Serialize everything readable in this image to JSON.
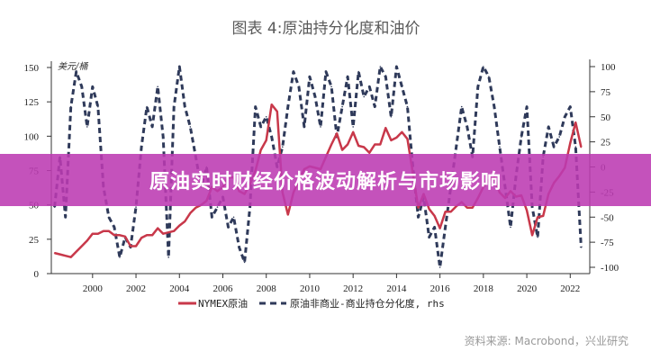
{
  "chart_data": {
    "type": "line",
    "title": "图表 4:原油持分化度和油价",
    "left_unit_label": "美元/桶",
    "source": "资料来源: Macrobond，兴业研究",
    "y_left": {
      "range": [
        0,
        150
      ],
      "ticks": [
        0,
        25,
        50,
        75,
        100,
        125,
        150
      ]
    },
    "y_right": {
      "range": [
        -100,
        100
      ],
      "ticks": [
        -100,
        -75,
        -50,
        -25,
        0,
        25,
        50,
        75,
        100
      ]
    },
    "x_axis": {
      "range": [
        1998.1,
        2022.9
      ],
      "ticks": [
        2000,
        2002,
        2004,
        2006,
        2008,
        2010,
        2012,
        2014,
        2016,
        2018,
        2020,
        2022
      ]
    },
    "grid": false,
    "legend_position": "bottom",
    "x": [
      1998.25,
      1998.5,
      1998.75,
      1999,
      1999.25,
      1999.5,
      1999.75,
      2000,
      2000.25,
      2000.5,
      2000.75,
      2001,
      2001.25,
      2001.5,
      2001.75,
      2002,
      2002.25,
      2002.5,
      2002.75,
      2003,
      2003.25,
      2003.5,
      2003.75,
      2004,
      2004.25,
      2004.5,
      2004.75,
      2005,
      2005.25,
      2005.5,
      2005.75,
      2006,
      2006.25,
      2006.5,
      2006.75,
      2007,
      2007.25,
      2007.5,
      2007.75,
      2008,
      2008.25,
      2008.5,
      2008.75,
      2009,
      2009.25,
      2009.5,
      2009.75,
      2010,
      2010.25,
      2010.5,
      2010.75,
      2011,
      2011.25,
      2011.5,
      2011.75,
      2012,
      2012.25,
      2012.5,
      2012.75,
      2013,
      2013.25,
      2013.5,
      2013.75,
      2014,
      2014.25,
      2014.5,
      2014.75,
      2015,
      2015.25,
      2015.5,
      2015.75,
      2016,
      2016.25,
      2016.5,
      2016.75,
      2017,
      2017.25,
      2017.5,
      2017.75,
      2018,
      2018.25,
      2018.5,
      2018.75,
      2019,
      2019.25,
      2019.5,
      2019.75,
      2020,
      2020.25,
      2020.5,
      2020.75,
      2021,
      2021.25,
      2021.5,
      2021.75,
      2022,
      2022.25,
      2022.5
    ],
    "series": [
      {
        "name": "NYMEX原油",
        "axis": "left",
        "color": "#c8384a",
        "style": "solid",
        "values": [
          15,
          14,
          13,
          12,
          16,
          20,
          24,
          29,
          29,
          31,
          31,
          28,
          28,
          27,
          20,
          20,
          26,
          28,
          28,
          33,
          29,
          30,
          31,
          35,
          38,
          44,
          48,
          50,
          53,
          63,
          60,
          63,
          70,
          70,
          60,
          58,
          65,
          75,
          90,
          97,
          123,
          118,
          59,
          43,
          59,
          68,
          76,
          78,
          77,
          76,
          85,
          94,
          102,
          90,
          94,
          103,
          93,
          92,
          88,
          94,
          94,
          106,
          97,
          99,
          103,
          98,
          73,
          48,
          58,
          47,
          42,
          33,
          45,
          45,
          49,
          52,
          48,
          48,
          55,
          63,
          68,
          70,
          59,
          55,
          60,
          56,
          57,
          46,
          28,
          41,
          42,
          58,
          66,
          71,
          77,
          95,
          110,
          92
        ]
      },
      {
        "name": "原油非商业-商业持仓分化度, rhs",
        "axis": "right",
        "color": "#2f3a5a",
        "style": "dashed",
        "values": [
          -40,
          10,
          -50,
          60,
          95,
          80,
          40,
          80,
          60,
          -20,
          -50,
          -60,
          -90,
          -70,
          -80,
          -40,
          20,
          60,
          40,
          80,
          30,
          -90,
          60,
          100,
          60,
          40,
          10,
          -20,
          0,
          -50,
          -40,
          -30,
          -60,
          -50,
          -80,
          -95,
          -40,
          60,
          40,
          50,
          30,
          0,
          20,
          60,
          95,
          80,
          40,
          90,
          70,
          40,
          95,
          80,
          30,
          60,
          90,
          40,
          95,
          70,
          80,
          60,
          100,
          90,
          50,
          100,
          80,
          60,
          0,
          -50,
          -30,
          -70,
          -60,
          -100,
          -60,
          -20,
          20,
          60,
          40,
          10,
          80,
          100,
          90,
          60,
          20,
          -20,
          -60,
          -10,
          30,
          60,
          -40,
          -70,
          10,
          40,
          20,
          30,
          50,
          60,
          20,
          -80
        ]
      }
    ]
  },
  "banner": {
    "text": "原油实时财经价格波动解析与市场影响"
  }
}
